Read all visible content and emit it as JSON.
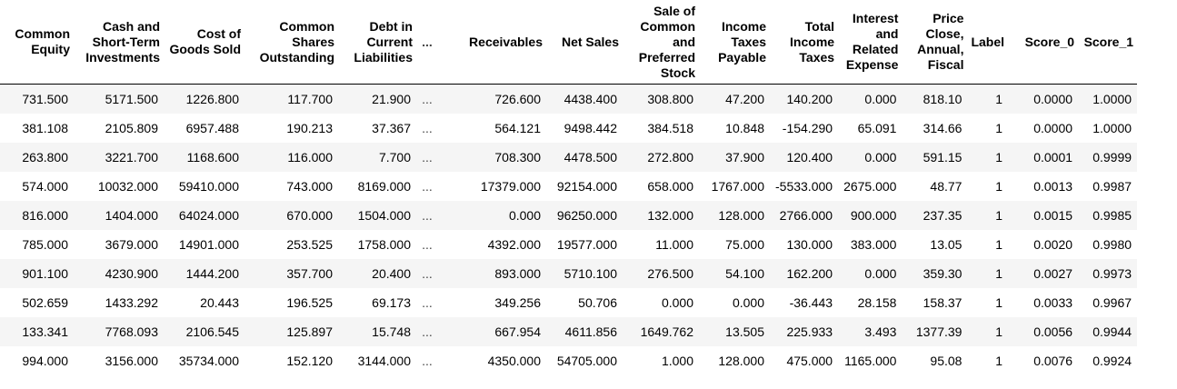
{
  "table": {
    "columns": [
      "Common Equity",
      "Cash and Short-Term Investments",
      "Cost of Goods Sold",
      "Common Shares Outstanding",
      "Debt in Current Liabilities",
      "...",
      "Receivables",
      "Net Sales",
      "Sale of Common and Preferred Stock",
      "Income Taxes Payable",
      "Total Income Taxes",
      "Interest and Related Expense",
      "Price Close, Annual, Fiscal",
      "Label",
      "Score_0",
      "Score_1"
    ],
    "rows": [
      [
        "731.500",
        "5171.500",
        "1226.800",
        "117.700",
        "21.900",
        "...",
        "726.600",
        "4438.400",
        "308.800",
        "47.200",
        "140.200",
        "0.000",
        "818.10",
        "1",
        "0.0000",
        "1.0000"
      ],
      [
        "381.108",
        "2105.809",
        "6957.488",
        "190.213",
        "37.367",
        "...",
        "564.121",
        "9498.442",
        "384.518",
        "10.848",
        "-154.290",
        "65.091",
        "314.66",
        "1",
        "0.0000",
        "1.0000"
      ],
      [
        "263.800",
        "3221.700",
        "1168.600",
        "116.000",
        "7.700",
        "...",
        "708.300",
        "4478.500",
        "272.800",
        "37.900",
        "120.400",
        "0.000",
        "591.15",
        "1",
        "0.0001",
        "0.9999"
      ],
      [
        "574.000",
        "10032.000",
        "59410.000",
        "743.000",
        "8169.000",
        "...",
        "17379.000",
        "92154.000",
        "658.000",
        "1767.000",
        "-5533.000",
        "2675.000",
        "48.77",
        "1",
        "0.0013",
        "0.9987"
      ],
      [
        "816.000",
        "1404.000",
        "64024.000",
        "670.000",
        "1504.000",
        "...",
        "0.000",
        "96250.000",
        "132.000",
        "128.000",
        "2766.000",
        "900.000",
        "237.35",
        "1",
        "0.0015",
        "0.9985"
      ],
      [
        "785.000",
        "3679.000",
        "14901.000",
        "253.525",
        "1758.000",
        "...",
        "4392.000",
        "19577.000",
        "11.000",
        "75.000",
        "130.000",
        "383.000",
        "13.05",
        "1",
        "0.0020",
        "0.9980"
      ],
      [
        "901.100",
        "4230.900",
        "1444.200",
        "357.700",
        "20.400",
        "...",
        "893.000",
        "5710.100",
        "276.500",
        "54.100",
        "162.200",
        "0.000",
        "359.30",
        "1",
        "0.0027",
        "0.9973"
      ],
      [
        "502.659",
        "1433.292",
        "20.443",
        "196.525",
        "69.173",
        "...",
        "349.256",
        "50.706",
        "0.000",
        "0.000",
        "-36.443",
        "28.158",
        "158.37",
        "1",
        "0.0033",
        "0.9967"
      ],
      [
        "133.341",
        "7768.093",
        "2106.545",
        "125.897",
        "15.748",
        "...",
        "667.954",
        "4611.856",
        "1649.762",
        "13.505",
        "225.933",
        "3.493",
        "1377.39",
        "1",
        "0.0056",
        "0.9944"
      ],
      [
        "994.000",
        "3156.000",
        "35734.000",
        "152.120",
        "3144.000",
        "...",
        "4350.000",
        "54705.000",
        "1.000",
        "128.000",
        "475.000",
        "1165.000",
        "95.08",
        "1",
        "0.0076",
        "0.9924"
      ]
    ]
  }
}
